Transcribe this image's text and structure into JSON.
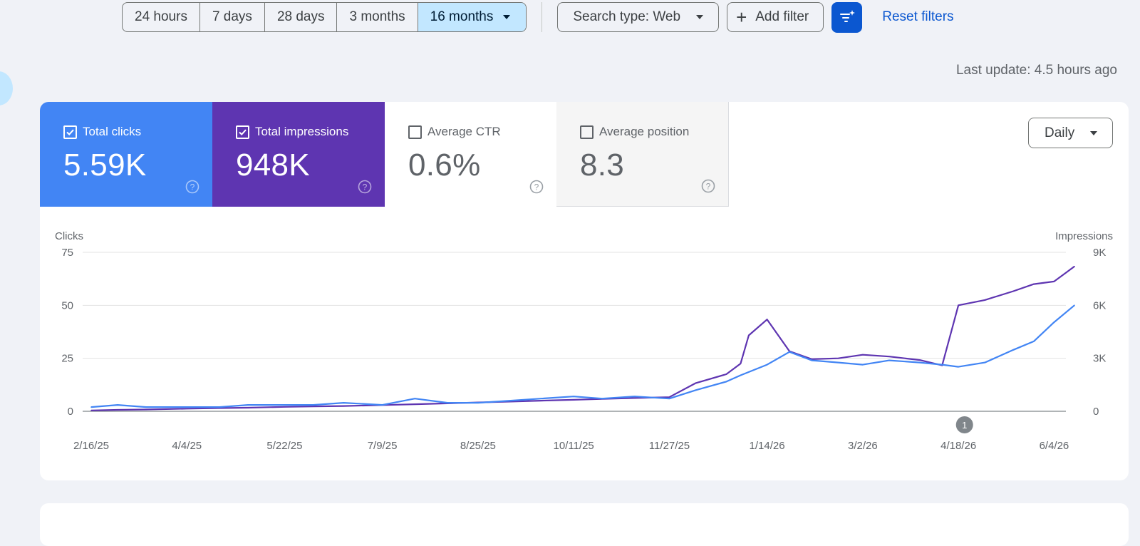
{
  "date_range": {
    "options": [
      "24 hours",
      "7 days",
      "28 days",
      "3 months",
      "16 months"
    ],
    "selected_index": 4
  },
  "search_type": "Search type: Web",
  "add_filter": "Add filter",
  "reset_filters": "Reset filters",
  "last_update": "Last update: 4.5 hours ago",
  "metrics": [
    {
      "label": "Total clicks",
      "value": "5.59K",
      "checked": true,
      "color": "#4285f4"
    },
    {
      "label": "Total impressions",
      "value": "948K",
      "checked": true,
      "color": "#5e35b1"
    },
    {
      "label": "Average CTR",
      "value": "0.6%",
      "checked": false
    },
    {
      "label": "Average position",
      "value": "8.3",
      "checked": false
    }
  ],
  "granularity": "Daily",
  "chart_data": {
    "type": "line",
    "y_left_label": "Clicks",
    "y_right_label": "Impressions",
    "y_left_ticks": [
      "75",
      "50",
      "25",
      "0"
    ],
    "y_right_ticks": [
      "9K",
      "6K",
      "3K",
      "0"
    ],
    "y_left_range": [
      0,
      75
    ],
    "y_right_range": [
      0,
      9000
    ],
    "x_ticks": [
      "2/16/25",
      "4/4/25",
      "5/22/25",
      "7/9/25",
      "8/25/25",
      "10/11/25",
      "11/27/25",
      "1/14/26",
      "3/2/26",
      "4/18/26",
      "6/4/26"
    ],
    "annotation_label": "1",
    "annotation_date": "4/21/26",
    "grid": true,
    "series": [
      {
        "name": "Clicks",
        "axis": "left",
        "color": "#4285f4",
        "x": [
          "2/16/25",
          "3/1/25",
          "3/15/25",
          "4/4/25",
          "4/20/25",
          "5/4/25",
          "5/22/25",
          "6/5/25",
          "6/20/25",
          "7/9/25",
          "7/25/25",
          "8/10/25",
          "8/25/25",
          "9/10/25",
          "9/25/25",
          "10/11/25",
          "10/25/25",
          "11/10/25",
          "11/27/25",
          "12/10/25",
          "12/25/25",
          "1/1/26",
          "1/14/26",
          "1/25/26",
          "2/5/26",
          "2/18/26",
          "3/2/26",
          "3/15/26",
          "3/30/26",
          "4/10/26",
          "4/18/26",
          "5/1/26",
          "5/15/26",
          "5/25/26",
          "6/4/26",
          "6/14/26"
        ],
        "values": [
          2,
          3,
          2,
          2,
          2,
          3,
          3,
          3,
          4,
          3,
          6,
          4,
          4,
          5,
          6,
          7,
          6,
          7,
          6,
          10,
          14,
          17,
          22,
          28,
          24,
          23,
          22,
          24,
          23,
          22,
          21,
          23,
          29,
          33,
          42,
          50
        ]
      },
      {
        "name": "Impressions",
        "axis": "right",
        "color": "#5e35b1",
        "x": [
          "2/16/25",
          "3/1/25",
          "3/15/25",
          "4/4/25",
          "4/20/25",
          "5/4/25",
          "5/22/25",
          "6/5/25",
          "6/20/25",
          "7/9/25",
          "7/25/25",
          "8/10/25",
          "8/25/25",
          "9/10/25",
          "9/25/25",
          "10/11/25",
          "10/25/25",
          "11/10/25",
          "11/27/25",
          "12/10/25",
          "12/25/25",
          "1/1/26",
          "1/5/26",
          "1/14/26",
          "1/25/26",
          "2/5/26",
          "2/18/26",
          "3/2/26",
          "3/15/26",
          "3/30/26",
          "4/10/26",
          "4/18/26",
          "5/1/26",
          "5/15/26",
          "5/25/26",
          "6/4/26",
          "6/14/26"
        ],
        "values": [
          50,
          80,
          100,
          150,
          180,
          200,
          250,
          280,
          300,
          350,
          400,
          450,
          500,
          550,
          600,
          650,
          700,
          750,
          800,
          1600,
          2100,
          2700,
          4300,
          5200,
          3400,
          2950,
          3000,
          3200,
          3100,
          2900,
          2600,
          6000,
          6300,
          6800,
          7200,
          7350,
          8200
        ]
      }
    ]
  }
}
